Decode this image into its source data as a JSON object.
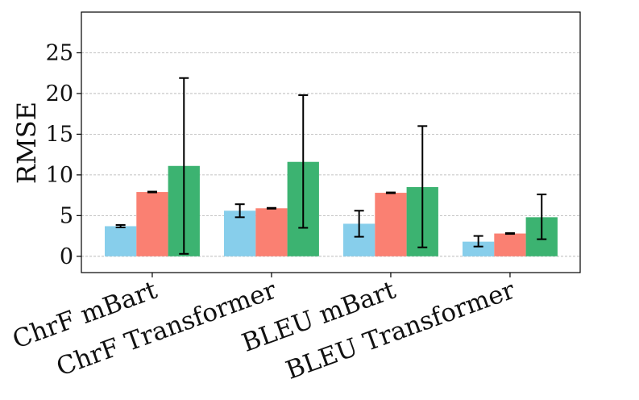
{
  "chart_data": {
    "type": "bar",
    "title": "",
    "xlabel": "",
    "ylabel": "RMSE",
    "ylim": [
      -2,
      30
    ],
    "yticks": [
      0,
      5,
      10,
      15,
      20,
      25
    ],
    "grid": "y-dashed",
    "legend": "none",
    "categories": [
      "ChrF mBart",
      "ChrF Transformer",
      "BLEU mBart",
      "BLEU Transformer"
    ],
    "series": [
      {
        "color": "#87ceeb",
        "values": [
          3.7,
          5.6,
          4.0,
          1.8
        ],
        "err_low": [
          3.55,
          4.8,
          2.4,
          1.2
        ],
        "err_high": [
          3.85,
          6.4,
          5.6,
          2.5
        ]
      },
      {
        "color": "#fa8072",
        "values": [
          7.9,
          5.9,
          7.8,
          2.8
        ],
        "err_low": [
          7.85,
          5.85,
          7.75,
          2.75
        ],
        "err_high": [
          7.95,
          5.95,
          7.85,
          2.85
        ]
      },
      {
        "color": "#3cb371",
        "values": [
          11.1,
          11.6,
          8.5,
          4.8
        ],
        "err_low": [
          0.3,
          3.5,
          1.1,
          2.1
        ],
        "err_high": [
          21.9,
          19.8,
          16.0,
          7.6
        ]
      }
    ]
  }
}
